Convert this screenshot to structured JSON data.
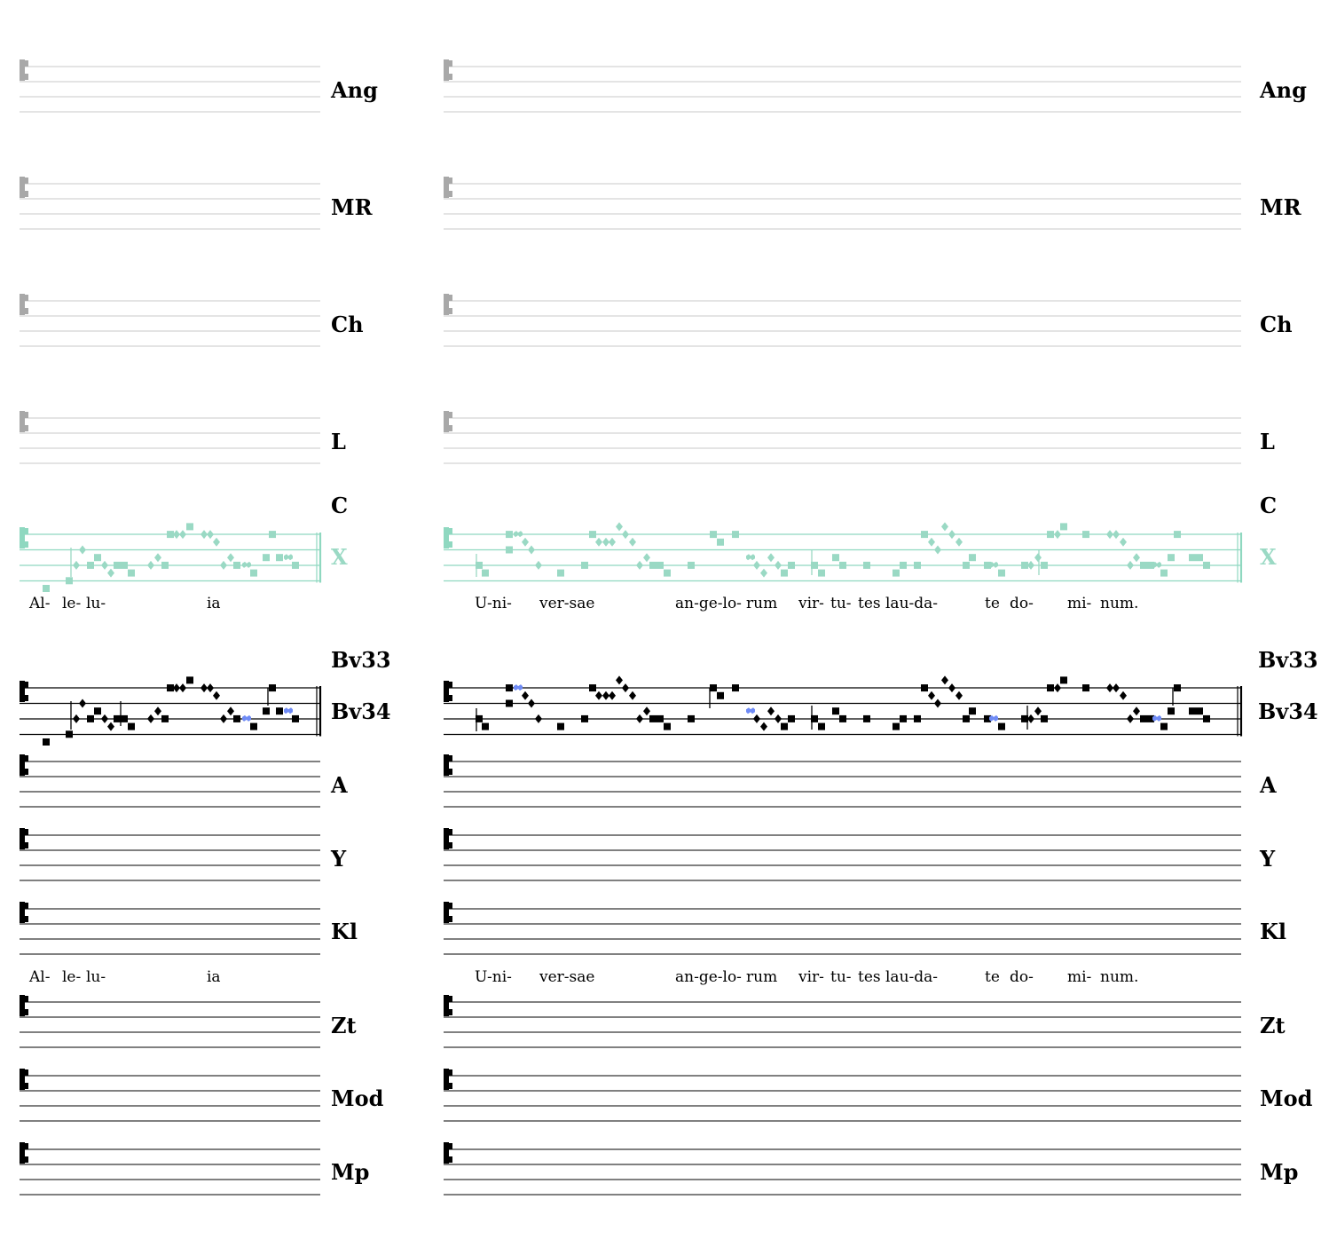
{
  "colors": {
    "ink": "#000000",
    "faded_staff": "#c8c8c8",
    "faded_clef": "#a8a8a8",
    "highlight_staff": "#8fd8c0",
    "highlight_note": "#9ad9c4",
    "quilisma": "#6f8bf5"
  },
  "icons": {
    "clef": "c-clef-icon",
    "punctum": "square-neume-icon",
    "inclinatum": "diamond-neume-icon",
    "quilisma": "quilisma-neume-icon"
  },
  "sigla": {
    "ang": "Ang",
    "mr": "MR",
    "ch": "Ch",
    "l": "L",
    "c": "C",
    "x": "X",
    "bv33": "Bv33",
    "bv34": "Bv34",
    "a": "A",
    "y": "Y",
    "kl": "Kl",
    "zt": "Zt",
    "mod": "Mod",
    "mp": "Mp"
  },
  "chant": {
    "alleluia_syllables": [
      "Al-",
      "le-",
      "lu-",
      "ia"
    ],
    "verse_syllables": [
      "U-ni-",
      "ver-sae",
      "an-ge-lo-",
      "rum",
      "vir-",
      "tu-",
      "tes",
      "lau-da-",
      "te",
      "do-",
      "mi-",
      "num."
    ]
  }
}
